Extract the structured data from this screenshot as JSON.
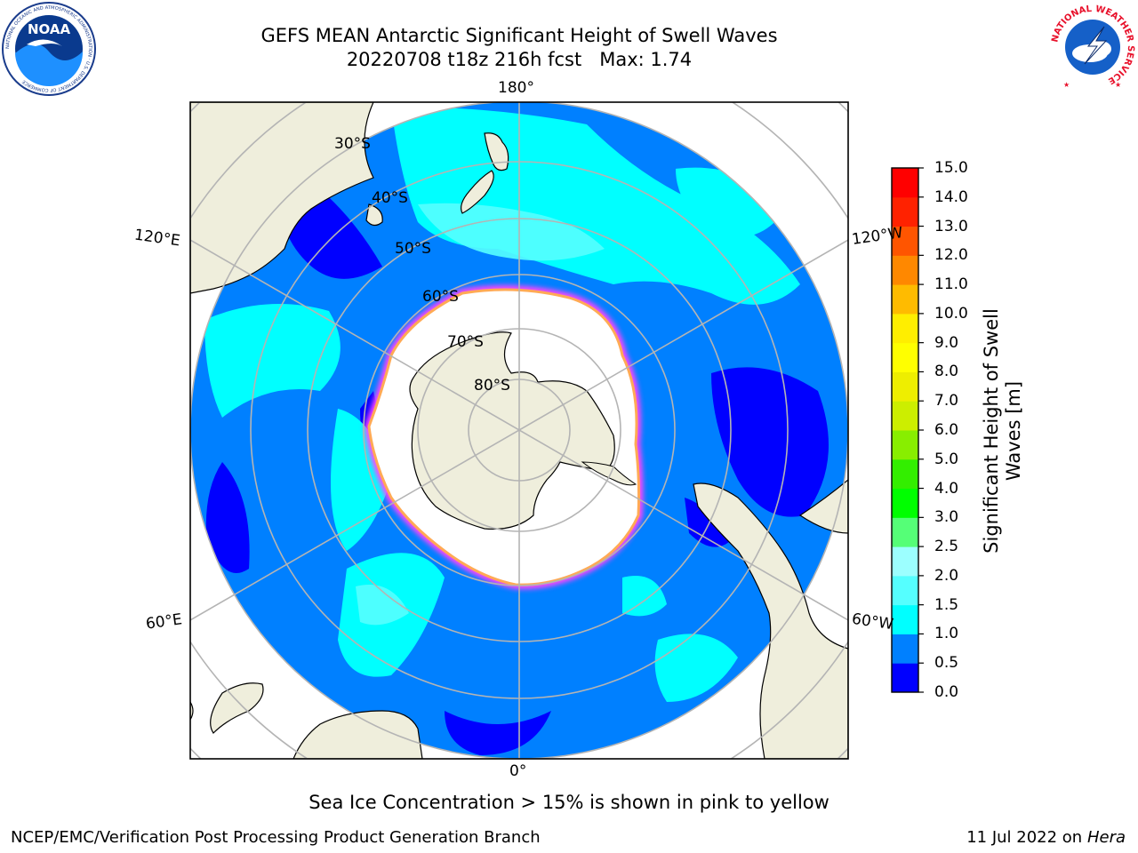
{
  "title": {
    "line1": "GEFS MEAN Antarctic Significant Height of Swell Waves",
    "line2": "20220708 t18z 216h fcst   Max: 1.74"
  },
  "map": {
    "projection": "south polar stereographic",
    "longitude_labels": [
      "180°",
      "120°E",
      "120°W",
      "60°E",
      "60°W",
      "0°"
    ],
    "latitude_labels": [
      "30°S",
      "40°S",
      "50°S",
      "60°S",
      "70°S",
      "80°S"
    ],
    "ocean_fill_colors": [
      "#0000ff",
      "#0080ff",
      "#00ffff",
      "#55ffff"
    ],
    "land_color": "#efeedc",
    "sea_ice_color": "#ffffff",
    "sea_ice_edge_colors": [
      "#ff44ff",
      "#ffaa55",
      "#ffee55"
    ],
    "grid_color": "#b4b4b4"
  },
  "colorbar": {
    "title": "Significant Height of Swell Waves [m]",
    "ticks": [
      "0.0",
      "0.5",
      "1.0",
      "1.5",
      "2.0",
      "2.5",
      "3.0",
      "4.0",
      "5.0",
      "6.0",
      "7.0",
      "8.0",
      "9.0",
      "10.0",
      "11.0",
      "12.0",
      "13.0",
      "14.0",
      "15.0"
    ],
    "colors": [
      "#0000ff",
      "#0080ff",
      "#00ffff",
      "#55ffff",
      "#9cffff",
      "#55ff77",
      "#00ff00",
      "#33ee00",
      "#88ee00",
      "#ccee00",
      "#eeee00",
      "#ffff00",
      "#ffee00",
      "#ffbb00",
      "#ff8800",
      "#ff5500",
      "#ff2200",
      "#ff0000"
    ]
  },
  "note": "Sea Ice Concentration > 15% is shown in pink to yellow",
  "footer": {
    "left": "NCEP/EMC/Verification Post Processing Product Generation Branch",
    "right_date": "11 Jul 2022 on ",
    "right_host": "Hera"
  },
  "logos": {
    "noaa": {
      "text": "NOAA",
      "ring_text": "NATIONAL OCEANIC AND ATMOSPHERIC ADMINISTRATION · U.S. DEPARTMENT OF COMMERCE"
    },
    "nws": {
      "ring_text": "NATIONAL WEATHER SERVICE"
    }
  }
}
